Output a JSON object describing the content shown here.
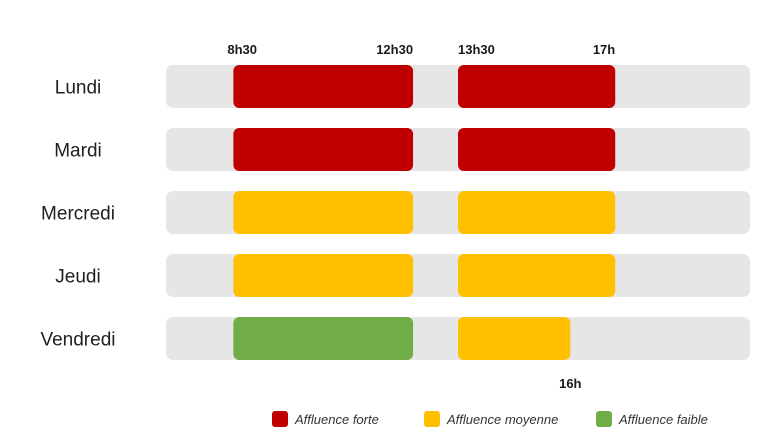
{
  "chart_data": {
    "type": "bar",
    "orientation": "horizontal-range",
    "categories": [
      "Lundi",
      "Mardi",
      "Mercredi",
      "Jeudi",
      "Vendredi"
    ],
    "time_labels_top": [
      "8h30",
      "12h30",
      "13h30",
      "17h"
    ],
    "time_labels_bottom": [
      "16h"
    ],
    "xlim": [
      7.0,
      20.0
    ],
    "rows": [
      {
        "day": "Lundi",
        "segments": [
          {
            "start": 8.5,
            "end": 12.5,
            "level": "forte"
          },
          {
            "start": 13.5,
            "end": 17.0,
            "level": "forte"
          }
        ]
      },
      {
        "day": "Mardi",
        "segments": [
          {
            "start": 8.5,
            "end": 12.5,
            "level": "forte"
          },
          {
            "start": 13.5,
            "end": 17.0,
            "level": "forte"
          }
        ]
      },
      {
        "day": "Mercredi",
        "segments": [
          {
            "start": 8.5,
            "end": 12.5,
            "level": "moyenne"
          },
          {
            "start": 13.5,
            "end": 17.0,
            "level": "moyenne"
          }
        ]
      },
      {
        "day": "Jeudi",
        "segments": [
          {
            "start": 8.5,
            "end": 12.5,
            "level": "moyenne"
          },
          {
            "start": 13.5,
            "end": 17.0,
            "level": "moyenne"
          }
        ]
      },
      {
        "day": "Vendredi",
        "segments": [
          {
            "start": 8.5,
            "end": 12.5,
            "level": "faible"
          },
          {
            "start": 13.5,
            "end": 16.0,
            "level": "moyenne"
          }
        ]
      }
    ],
    "legend": {
      "position": "bottom-right",
      "items": [
        {
          "key": "forte",
          "label": "Affluence forte",
          "color": "#c00000"
        },
        {
          "key": "moyenne",
          "label": "Affluence moyenne",
          "color": "#ffc000"
        },
        {
          "key": "faible",
          "label": "Affluence faible",
          "color": "#70ad47"
        }
      ]
    },
    "track_color": "#e7e6e6",
    "grid": false
  }
}
